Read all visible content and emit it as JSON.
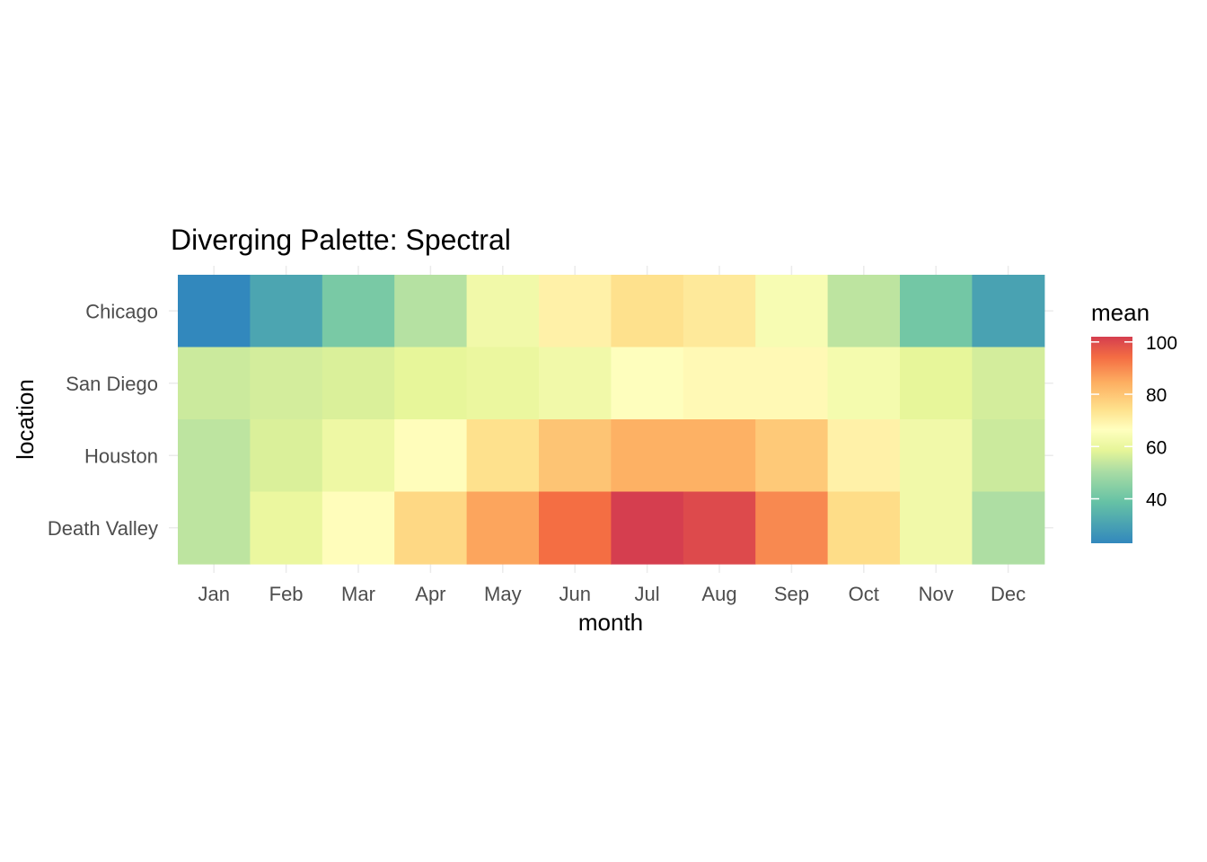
{
  "chart_data": {
    "type": "heatmap",
    "title": "Diverging Palette: Spectral",
    "xlabel": "month",
    "ylabel": "location",
    "x_categories": [
      "Jan",
      "Feb",
      "Mar",
      "Apr",
      "May",
      "Jun",
      "Jul",
      "Aug",
      "Sep",
      "Oct",
      "Nov",
      "Dec"
    ],
    "y_categories": [
      "Chicago",
      "San Diego",
      "Houston",
      "Death Valley"
    ],
    "values": [
      [
        23,
        31,
        42,
        52,
        62,
        70,
        74,
        72,
        64,
        53,
        41,
        30
      ],
      [
        55,
        56,
        57,
        59,
        60,
        62,
        66,
        68,
        68,
        63,
        59,
        56
      ],
      [
        53,
        57,
        61,
        67,
        74,
        80,
        84,
        84,
        79,
        70,
        62,
        55
      ],
      [
        53,
        60,
        67,
        76,
        86,
        94,
        102,
        100,
        90,
        75,
        62,
        51
      ]
    ],
    "color_scale": {
      "title": "mean",
      "palette": "Spectral",
      "range": [
        23,
        102
      ],
      "breaks": [
        40,
        60,
        80,
        100
      ],
      "colors": {
        "low": "#3288bd",
        "mid": "#ffffbf",
        "high": "#d53e4f"
      }
    },
    "grid": true,
    "legend_position": "right"
  }
}
